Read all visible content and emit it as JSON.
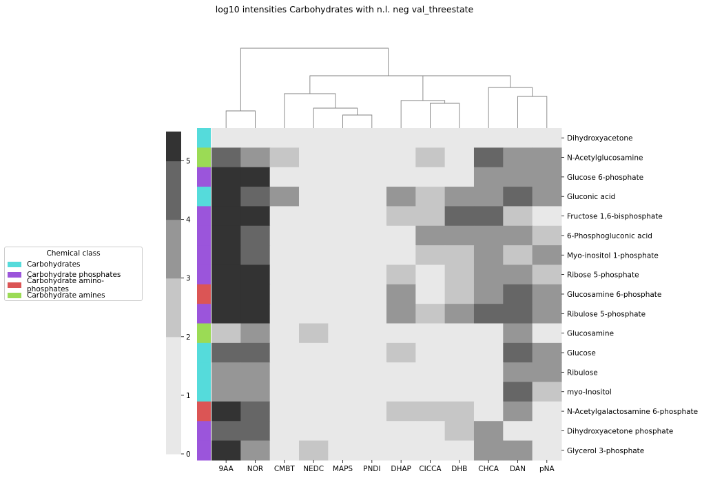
{
  "title": "log10 intensities Carbohydrates with n.l. neg val_threestate",
  "legend": {
    "title": "Chemical class",
    "items": [
      {
        "label": "Carbohydrates",
        "color": "#55dbdb"
      },
      {
        "label": "Carbohydrate phosphates",
        "color": "#9b55db"
      },
      {
        "label": "Carbohydrate amino-phosphates",
        "color": "#db5555"
      },
      {
        "label": "Carbohydrate amines",
        "color": "#9bdb55"
      }
    ]
  },
  "chart_data": {
    "type": "heatmap",
    "title": "log10 intensities Carbohydrates with n.l. neg val_threestate",
    "columns": [
      "9AA",
      "NOR",
      "CMBT",
      "NEDC",
      "MAPS",
      "PNDI",
      "DHAP",
      "CICCA",
      "DHB",
      "CHCA",
      "DAN",
      "pNA"
    ],
    "rows": [
      "Dihydroxyacetone",
      "N-Acetylglucosamine",
      "Glucose 6-phosphate",
      "Gluconic acid",
      "Fructose 1,6-bisphosphate",
      "6-Phosphogluconic acid",
      "Myo-inositol 1-phosphate",
      "Ribose 5-phosphate",
      "Glucosamine 6-phosphate",
      "Ribulose 5-phosphate",
      "Glucosamine",
      "Glucose",
      "Ribulose",
      "myo-Inositol",
      "N-Acetylgalactosamine 6-phosphate",
      "Dihydroxyacetone phosphate",
      "Glycerol 3-phosphate"
    ],
    "row_classes": [
      "Carbohydrates",
      "Carbohydrate amines",
      "Carbohydrate phosphates",
      "Carbohydrates",
      "Carbohydrate phosphates",
      "Carbohydrate phosphates",
      "Carbohydrate phosphates",
      "Carbohydrate phosphates",
      "Carbohydrate amino-phosphates",
      "Carbohydrate phosphates",
      "Carbohydrate amines",
      "Carbohydrates",
      "Carbohydrates",
      "Carbohydrates",
      "Carbohydrate amino-phosphates",
      "Carbohydrate phosphates",
      "Carbohydrate phosphates"
    ],
    "values": [
      [
        0,
        0,
        0,
        0,
        0,
        0,
        0,
        0,
        0,
        0,
        0,
        0
      ],
      [
        4,
        3,
        2,
        0,
        0,
        0,
        0,
        2,
        0,
        4,
        3,
        3
      ],
      [
        5,
        5,
        0,
        0,
        0,
        0,
        0,
        0,
        0,
        3,
        3,
        3
      ],
      [
        5,
        4,
        3,
        0,
        0,
        0,
        3,
        2,
        3,
        3,
        4,
        3
      ],
      [
        5,
        5,
        0,
        0,
        0,
        0,
        2,
        2,
        4,
        4,
        2,
        1
      ],
      [
        5,
        4,
        0,
        0,
        0,
        0,
        0,
        3,
        3,
        3,
        3,
        2
      ],
      [
        5,
        4,
        0,
        0,
        0,
        0,
        0,
        2,
        2,
        3,
        2,
        3
      ],
      [
        5,
        5,
        0,
        0,
        0,
        0,
        2,
        1,
        2,
        3,
        3,
        2
      ],
      [
        5,
        5,
        0,
        0,
        0,
        0,
        3,
        1,
        2,
        3,
        4,
        3
      ],
      [
        5,
        5,
        0,
        0,
        0,
        0,
        3,
        2,
        3,
        4,
        4,
        3
      ],
      [
        2,
        3,
        0,
        2,
        0,
        0,
        0,
        0,
        0,
        0,
        3,
        1
      ],
      [
        4,
        4,
        0,
        0,
        0,
        0,
        2,
        0,
        0,
        0,
        4,
        3
      ],
      [
        3,
        3,
        0,
        0,
        0,
        0,
        0,
        0,
        0,
        0,
        3,
        3
      ],
      [
        3,
        3,
        0,
        0,
        0,
        0,
        0,
        0,
        0,
        0,
        4,
        2
      ],
      [
        5,
        4,
        0,
        0,
        0,
        0,
        2,
        2,
        2,
        0,
        3,
        1
      ],
      [
        4,
        4,
        0,
        0,
        0,
        0,
        0,
        0,
        2,
        3,
        1,
        1
      ],
      [
        5,
        3,
        0,
        2,
        0,
        0,
        0,
        0,
        0,
        3,
        3,
        1
      ]
    ],
    "colorbar": {
      "range": [
        0,
        5.5
      ],
      "ticks": [
        "0",
        "1",
        "2",
        "3",
        "4",
        "5"
      ]
    },
    "level_colors": [
      "#e8e8e8",
      "#e8e8e8",
      "#c6c6c6",
      "#969696",
      "#666666",
      "#333333"
    ],
    "legend_placement": "left",
    "grid": false
  }
}
